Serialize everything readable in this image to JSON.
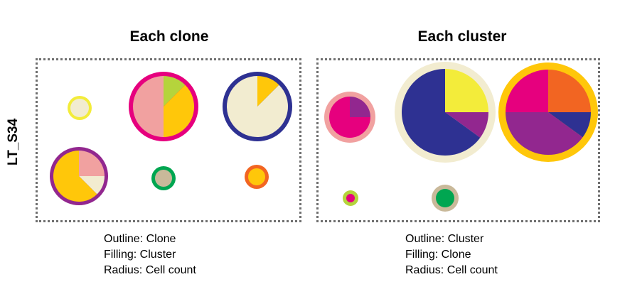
{
  "panels": [
    {
      "title": "Each clone",
      "legend": [
        "Outline: Clone",
        "Filling: Cluster",
        "Radius: Cell count"
      ],
      "circles": [
        {
          "outline": "#f3ec3a",
          "slices": [
            {
              "color": "#f2ecd0",
              "value": 1
            }
          ]
        },
        {
          "outline": "#e6007e",
          "slices": [
            {
              "color": "#b5d43c",
              "value": 0.125
            },
            {
              "color": "#ffc70a",
              "value": 0.375
            },
            {
              "color": "#f1a1a0",
              "value": 0.5
            }
          ]
        },
        {
          "outline": "#2e3192",
          "slices": [
            {
              "color": "#ffc70a",
              "value": 0.125
            },
            {
              "color": "#f2ecd0",
              "value": 0.875
            }
          ]
        },
        {
          "outline": "#92278f",
          "slices": [
            {
              "color": "#f1a1a0",
              "value": 0.25
            },
            {
              "color": "#f2ecd0",
              "value": 0.125
            },
            {
              "color": "#ffc70a",
              "value": 0.625
            }
          ]
        },
        {
          "outline": "#00a651",
          "slices": [
            {
              "color": "#c9b99a",
              "value": 1
            }
          ]
        },
        {
          "outline": "#f26522",
          "slices": [
            {
              "color": "#ffc70a",
              "value": 1
            }
          ]
        }
      ]
    },
    {
      "title": "Each cluster",
      "legend": [
        "Outline: Cluster",
        "Filling: Clone",
        "Radius: Cell count"
      ],
      "circles": [
        {
          "outline": "#f1a1a0",
          "slices": [
            {
              "color": "#92278f",
              "value": 0.25
            },
            {
              "color": "#e6007e",
              "value": 0.75
            }
          ]
        },
        {
          "outline": "#f2ecd0",
          "slices": [
            {
              "color": "#f3ec3a",
              "value": 0.25
            },
            {
              "color": "#92278f",
              "value": 0.1
            },
            {
              "color": "#2e3192",
              "value": 0.65
            }
          ]
        },
        {
          "outline": "#ffc70a",
          "slices": [
            {
              "color": "#f26522",
              "value": 0.25
            },
            {
              "color": "#2e3192",
              "value": 0.1
            },
            {
              "color": "#92278f",
              "value": 0.4
            },
            {
              "color": "#e6007e",
              "value": 0.25
            }
          ]
        },
        {
          "outline": "#b5d43c",
          "slices": [
            {
              "color": "#e6007e",
              "value": 1
            }
          ]
        },
        {
          "outline": "#c9b99a",
          "slices": [
            {
              "color": "#00a651",
              "value": 1
            }
          ]
        }
      ]
    }
  ],
  "row_label": "LT_S34"
}
